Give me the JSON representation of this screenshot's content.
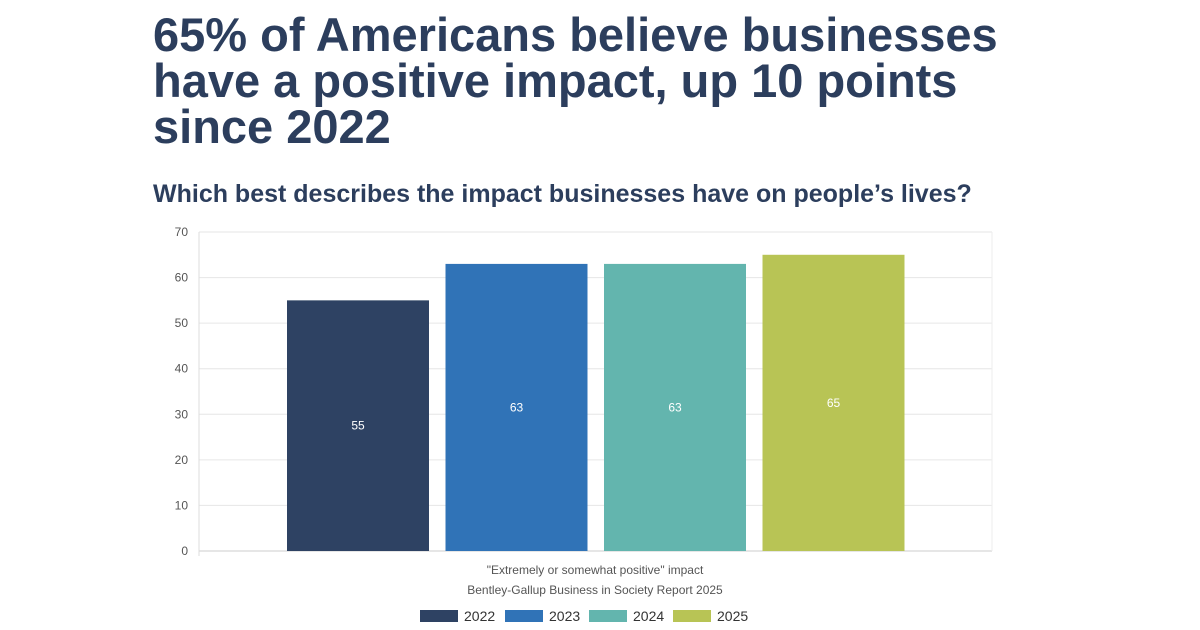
{
  "header": {
    "title": "65% of Americans believe businesses have a positive impact, up 10 points since 2022",
    "subtitle": "Which best describes the impact businesses have on people’s lives?"
  },
  "chart_data": {
    "type": "bar",
    "categories": [
      "\"Extremely or somewhat positive\" impact"
    ],
    "xlabel": "Bentley-Gallup Business in Society Report 2025",
    "ylabel": "",
    "ylim": [
      0,
      70
    ],
    "yticks": [
      0,
      10,
      20,
      30,
      40,
      50,
      60,
      70
    ],
    "grid": true,
    "legend": "bottom",
    "series": [
      {
        "name": "2022",
        "values": [
          55
        ],
        "color": "#2e4263"
      },
      {
        "name": "2023",
        "values": [
          63
        ],
        "color": "#3073b7"
      },
      {
        "name": "2024",
        "values": [
          63
        ],
        "color": "#63b5ae"
      },
      {
        "name": "2025",
        "values": [
          65
        ],
        "color": "#b8c455"
      }
    ]
  }
}
